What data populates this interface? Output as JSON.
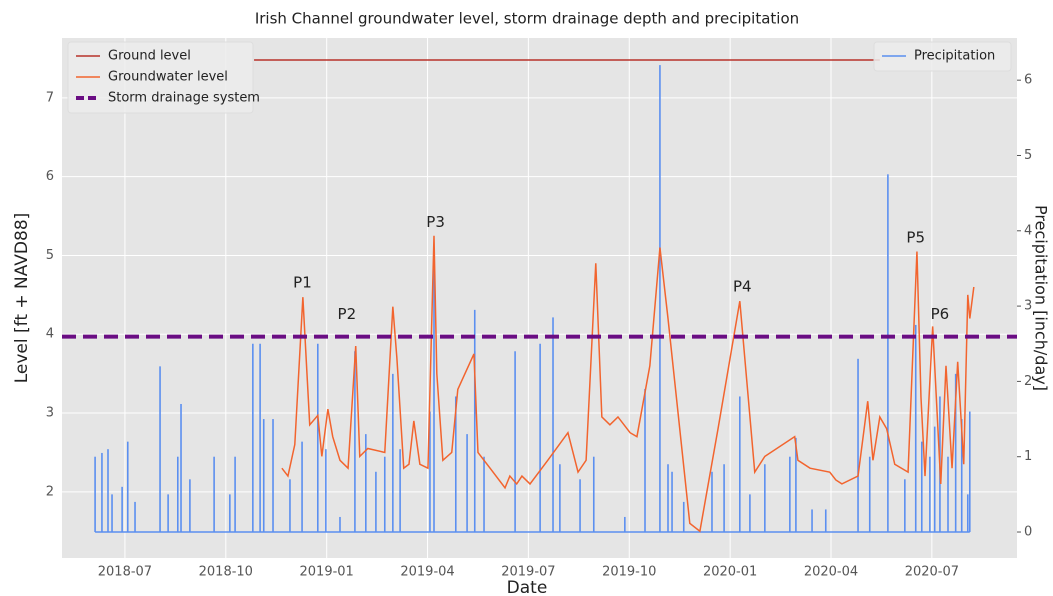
{
  "chart_data": {
    "type": "line",
    "title": "Irish Channel groundwater level, storm drainage depth and precipitation",
    "xlabel": "Date",
    "ylabel": "Level [ft + NAVD88]",
    "y2label": "Precipitation [inch/day]",
    "xlim": [
      2018.344,
      2020.711
    ],
    "ylim": [
      1.16,
      7.76
    ],
    "y2lim": [
      -0.345,
      6.56
    ],
    "xticks": [
      {
        "value": 2018.5,
        "label": "2018-07"
      },
      {
        "value": 2018.75,
        "label": "2018-10"
      },
      {
        "value": 2019.0,
        "label": "2019-01"
      },
      {
        "value": 2019.25,
        "label": "2019-04"
      },
      {
        "value": 2019.5,
        "label": "2019-07"
      },
      {
        "value": 2019.75,
        "label": "2019-10"
      },
      {
        "value": 2020.0,
        "label": "2020-01"
      },
      {
        "value": 2020.25,
        "label": "2020-04"
      },
      {
        "value": 2020.5,
        "label": "2020-07"
      }
    ],
    "yticks": [
      2,
      3,
      4,
      5,
      6,
      7
    ],
    "y2ticks": [
      0,
      1,
      2,
      3,
      4,
      5,
      6
    ],
    "grid": true,
    "legend": "upper left",
    "legend2": "upper right",
    "series": [
      {
        "name": "Ground level",
        "color": "#b8322a",
        "kind": "line",
        "x": [
          2018.82,
          2020.371
        ],
        "values": [
          7.48,
          7.48
        ]
      },
      {
        "name": "Groundwater level",
        "color": "#f2642e",
        "kind": "line",
        "x": [
          2018.889,
          2018.904,
          2018.921,
          2018.941,
          2018.958,
          2018.978,
          2018.988,
          2019.003,
          2019.015,
          2019.033,
          2019.053,
          2019.072,
          2019.082,
          2019.102,
          2019.144,
          2019.164,
          2019.174,
          2019.191,
          2019.204,
          2019.216,
          2019.231,
          2019.251,
          2019.266,
          2019.273,
          2019.288,
          2019.31,
          2019.325,
          2019.365,
          2019.375,
          2019.405,
          2019.442,
          2019.454,
          2019.471,
          2019.484,
          2019.504,
          2019.548,
          2019.598,
          2019.623,
          2019.643,
          2019.667,
          2019.682,
          2019.702,
          2019.722,
          2019.752,
          2019.769,
          2019.801,
          2019.826,
          2019.846,
          2019.9,
          2019.925,
          2019.97,
          2020.024,
          2020.061,
          2020.086,
          2020.16,
          2020.168,
          2020.198,
          2020.247,
          2020.262,
          2020.277,
          2020.317,
          2020.341,
          2020.354,
          2020.371,
          2020.388,
          2020.408,
          2020.441,
          2020.463,
          2020.473,
          2020.483,
          2020.502,
          2020.522,
          2020.535,
          2020.55,
          2020.564,
          2020.579,
          2020.589,
          2020.594,
          2020.604
        ],
        "values": [
          2.3,
          2.2,
          2.6,
          4.47,
          2.85,
          2.97,
          2.45,
          3.05,
          2.7,
          2.4,
          2.3,
          3.85,
          2.45,
          2.55,
          2.5,
          4.35,
          3.7,
          2.3,
          2.35,
          2.9,
          2.35,
          2.3,
          5.25,
          3.5,
          2.4,
          2.5,
          3.3,
          3.75,
          2.5,
          2.3,
          2.05,
          2.2,
          2.1,
          2.2,
          2.1,
          2.4,
          2.75,
          2.25,
          2.4,
          4.9,
          2.95,
          2.85,
          2.95,
          2.75,
          2.7,
          3.6,
          5.1,
          4.2,
          1.6,
          1.5,
          2.8,
          4.42,
          2.25,
          2.45,
          2.7,
          2.4,
          2.3,
          2.25,
          2.15,
          2.1,
          2.2,
          3.15,
          2.4,
          2.95,
          2.8,
          2.35,
          2.25,
          5.05,
          3.2,
          2.2,
          4.1,
          2.1,
          3.6,
          2.3,
          3.65,
          2.35,
          4.5,
          4.2,
          4.6
        ]
      },
      {
        "name": "Storm drainage system",
        "color": "#6a0d83",
        "kind": "hline",
        "hline": 3.97
      },
      {
        "name": "Precipitation",
        "color": "#5b8ff0",
        "kind": "bar",
        "axis": "y2",
        "x": [
          2018.426,
          2018.443,
          2018.458,
          2018.468,
          2018.493,
          2018.507,
          2018.525,
          2018.587,
          2018.607,
          2018.631,
          2018.639,
          2018.661,
          2018.721,
          2018.76,
          2018.773,
          2018.817,
          2018.835,
          2018.844,
          2018.867,
          2018.909,
          2018.939,
          2018.978,
          2018.998,
          2019.033,
          2019.07,
          2019.097,
          2019.122,
          2019.144,
          2019.164,
          2019.182,
          2019.256,
          2019.266,
          2019.32,
          2019.348,
          2019.367,
          2019.39,
          2019.467,
          2019.529,
          2019.561,
          2019.578,
          2019.628,
          2019.662,
          2019.739,
          2019.789,
          2019.826,
          2019.846,
          2019.856,
          2019.885,
          2019.955,
          2019.985,
          2020.024,
          2020.049,
          2020.086,
          2020.148,
          2020.163,
          2020.203,
          2020.237,
          2020.317,
          2020.346,
          2020.391,
          2020.433,
          2020.46,
          2020.475,
          2020.495,
          2020.507,
          2020.52,
          2020.54,
          2020.559,
          2020.574,
          2020.589,
          2020.594
        ],
        "values": [
          1.0,
          1.05,
          1.1,
          0.5,
          0.6,
          1.2,
          0.4,
          2.2,
          0.5,
          1.0,
          1.7,
          0.7,
          1.0,
          0.5,
          1.0,
          2.5,
          2.5,
          1.5,
          1.5,
          0.7,
          1.2,
          2.5,
          1.1,
          0.2,
          2.4,
          1.3,
          0.8,
          1.0,
          2.1,
          1.1,
          1.6,
          3.5,
          1.8,
          1.3,
          2.95,
          1.0,
          2.4,
          2.5,
          2.85,
          0.9,
          0.7,
          1.0,
          0.2,
          1.9,
          6.2,
          0.9,
          0.8,
          0.4,
          0.8,
          0.9,
          1.8,
          0.5,
          0.9,
          1.0,
          1.25,
          0.3,
          0.3,
          2.3,
          1.0,
          4.75,
          0.7,
          2.75,
          1.2,
          1.0,
          1.4,
          1.8,
          1.0,
          2.1,
          1.5,
          0.5,
          1.6
        ]
      }
    ],
    "annotations": [
      {
        "text": "P1",
        "x": 2018.94,
        "y": 4.65
      },
      {
        "text": "P2",
        "x": 2019.05,
        "y": 4.25
      },
      {
        "text": "P3",
        "x": 2019.27,
        "y": 5.42
      },
      {
        "text": "P4",
        "x": 2020.03,
        "y": 4.6
      },
      {
        "text": "P5",
        "x": 2020.46,
        "y": 5.22
      },
      {
        "text": "P6",
        "x": 2020.52,
        "y": 4.25
      }
    ]
  }
}
